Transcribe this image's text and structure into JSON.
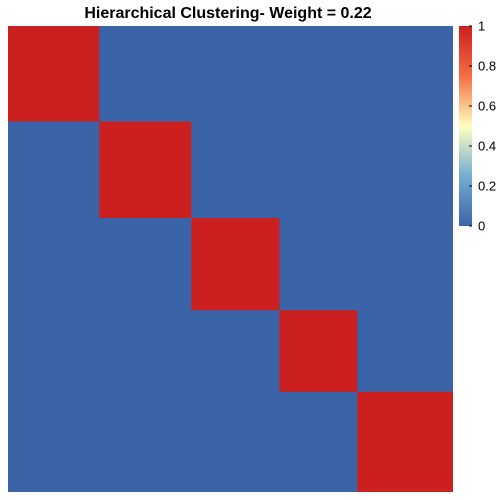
{
  "chart_data": {
    "type": "heatmap",
    "title": "Hierarchical Clustering- Weight = 0.22",
    "xlabel": "",
    "ylabel": "",
    "blocks": [
      {
        "from": 0,
        "to": 0.205
      },
      {
        "from": 0.205,
        "to": 0.412
      },
      {
        "from": 0.412,
        "to": 0.61
      },
      {
        "from": 0.61,
        "to": 0.785
      },
      {
        "from": 0.785,
        "to": 1
      }
    ],
    "in_block_value": 1,
    "out_block_value": 0,
    "colorbar": {
      "ticks": [
        0,
        0.2,
        0.4,
        0.6,
        0.8,
        1
      ],
      "tick_labels": [
        "0",
        "0.2",
        "0.4",
        "0.6",
        "0.8",
        "1"
      ],
      "colors": [
        "#3A64A7",
        "#74ADD1",
        "#FFFFBF",
        "#F46D43",
        "#CC1F1F"
      ],
      "range": [
        0,
        1
      ]
    }
  }
}
